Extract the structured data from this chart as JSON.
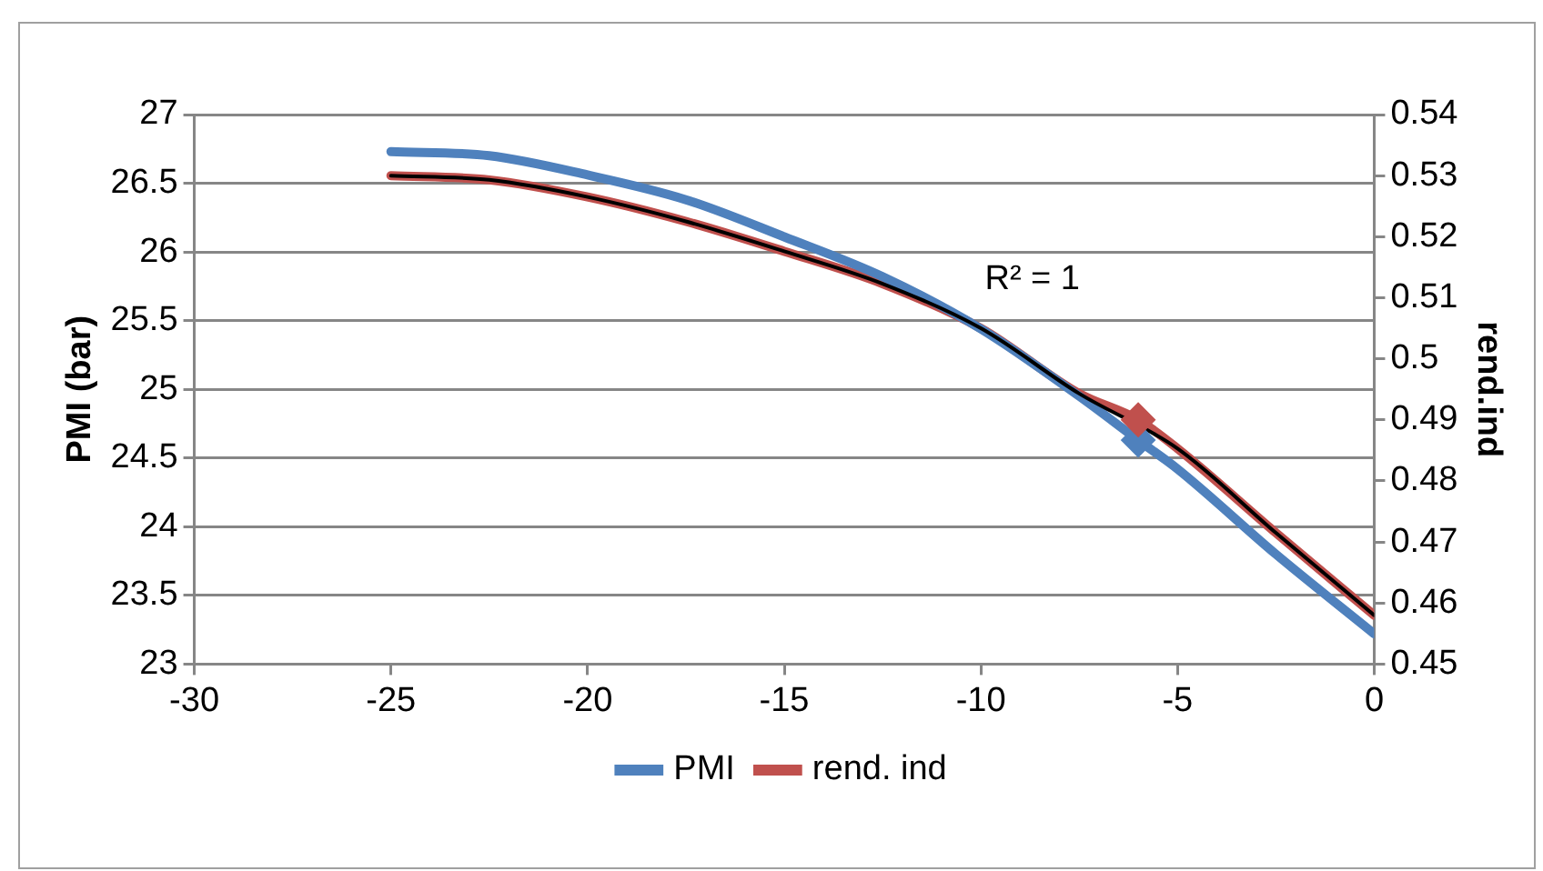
{
  "chart_data": {
    "type": "line",
    "xlabel": null,
    "ylabel": "PMI (bar)",
    "y2label": "rend.ind",
    "x": [
      -25,
      -22.5,
      -20,
      -17.5,
      -15,
      -12.5,
      -10,
      -7.5,
      -6,
      -5,
      -2.5,
      0
    ],
    "series": [
      {
        "name": "PMI",
        "color": "#4f81bd",
        "values": [
          26.73,
          26.7,
          26.56,
          26.38,
          26.11,
          25.82,
          25.44,
          24.95,
          24.63,
          24.42,
          23.8,
          23.22
        ],
        "marker": "none"
      },
      {
        "name": "rend. ind",
        "color": "#c0504d",
        "axis": "y2",
        "values": [
          0.53,
          0.5293,
          0.5265,
          0.5225,
          0.5176,
          0.5123,
          0.505,
          0.4943,
          0.49,
          0.4853,
          0.4715,
          0.458
        ],
        "marker": "none"
      },
      {
        "type": "line",
        "color": "#000000",
        "axis": "y2",
        "values": [
          0.53,
          0.5293,
          0.5265,
          0.5225,
          0.5176,
          0.5123,
          0.505,
          0.4943,
          null,
          0.4853,
          0.4715,
          0.458
        ],
        "marker": "none"
      },
      {
        "type": "scatter",
        "color": "#4f81bd",
        "x": [
          -6
        ],
        "values": [
          24.63
        ],
        "marker": "diamond"
      },
      {
        "type": "scatter",
        "color": "#c0504d",
        "axis": "y2",
        "x": [
          -6
        ],
        "values": [
          0.49
        ],
        "marker": "diamond"
      }
    ],
    "xlim": [
      -30,
      0
    ],
    "xticks": [
      -30,
      -25,
      -20,
      -15,
      -10,
      -5,
      0
    ],
    "ylim": [
      23,
      27
    ],
    "yticks": [
      23,
      23.5,
      24,
      24.5,
      25,
      25.5,
      26,
      26.5,
      27
    ],
    "y2lim": [
      0.45,
      0.54
    ],
    "y2ticks": [
      0.45,
      0.46,
      0.47,
      0.48,
      0.49,
      0.5,
      0.51,
      0.52,
      0.53,
      0.54
    ],
    "annotations": [
      "R² = 1"
    ],
    "grid": "y",
    "legend": "bottom"
  }
}
